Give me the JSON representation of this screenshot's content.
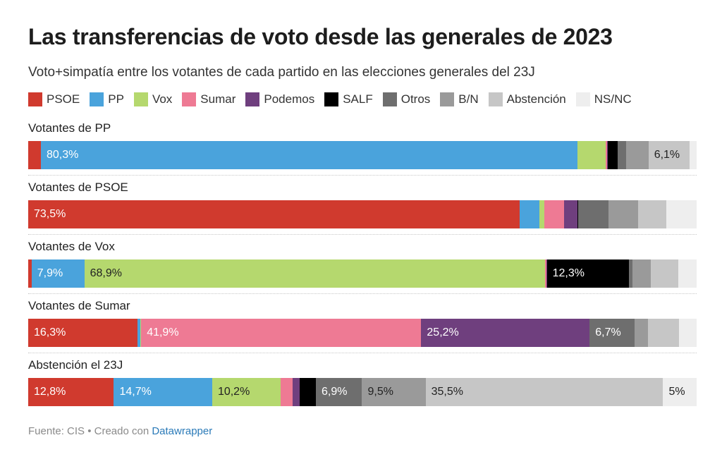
{
  "title": "Las transferencias de voto desde las generales de 2023",
  "subtitle": "Voto+simpatía entre los votantes de cada partido en las elecciones generales del 23J",
  "footer": {
    "source": "Fuente: CIS • Creado con ",
    "link": "Datawrapper"
  },
  "colors": {
    "PSOE": "#d03a2e",
    "PP": "#4aa3dc",
    "Vox": "#b5d86e",
    "Sumar": "#ee7a94",
    "Podemos": "#6f3f7e",
    "SALF": "#000000",
    "Otros": "#6e6e6e",
    "B/N": "#9a9a9a",
    "Abstención": "#c6c6c6",
    "NS/NC": "#eeeeee"
  },
  "chart_data": {
    "type": "bar",
    "orientation": "horizontal-stacked",
    "units": "%",
    "categories": [
      "PSOE",
      "PP",
      "Vox",
      "Sumar",
      "Podemos",
      "SALF",
      "Otros",
      "B/N",
      "Abstención",
      "NS/NC"
    ],
    "legend_position": "top",
    "groups": [
      {
        "label": "Votantes de PP",
        "values": [
          1.9,
          80.3,
          4.2,
          0.2,
          0.1,
          1.5,
          1.3,
          3.3,
          6.1,
          1.1
        ],
        "labels": [
          "",
          "80,3%",
          "",
          "",
          "",
          "",
          "",
          "",
          "6,1%",
          ""
        ]
      },
      {
        "label": "Votantes de PSOE",
        "values": [
          73.5,
          3.0,
          0.7,
          3.0,
          2.0,
          0.1,
          4.5,
          4.4,
          4.3,
          4.5
        ],
        "labels": [
          "73,5%",
          "",
          "",
          "",
          "",
          "",
          "",
          "",
          "",
          ""
        ]
      },
      {
        "label": "Votantes de Vox",
        "values": [
          0.5,
          7.9,
          68.9,
          0.2,
          0.1,
          12.3,
          0.5,
          2.7,
          4.2,
          2.7
        ],
        "labels": [
          "",
          "7,9%",
          "68,9%",
          "",
          "",
          "12,3%",
          "",
          "",
          "",
          ""
        ]
      },
      {
        "label": "Votantes de Sumar",
        "values": [
          16.3,
          0.5,
          0.1,
          41.9,
          25.2,
          0.0,
          6.7,
          2.0,
          4.7,
          2.6
        ],
        "labels": [
          "16,3%",
          "",
          "",
          "41,9%",
          "25,2%",
          "",
          "6,7%",
          "",
          "",
          ""
        ]
      },
      {
        "label": "Abstención el 23J",
        "values": [
          12.8,
          14.7,
          10.2,
          1.8,
          1.1,
          2.4,
          6.9,
          9.5,
          35.5,
          5.0
        ],
        "labels": [
          "12,8%",
          "14,7%",
          "10,2%",
          "",
          "",
          "",
          "6,9%",
          "9,5%",
          "35,5%",
          "5%"
        ]
      }
    ]
  }
}
